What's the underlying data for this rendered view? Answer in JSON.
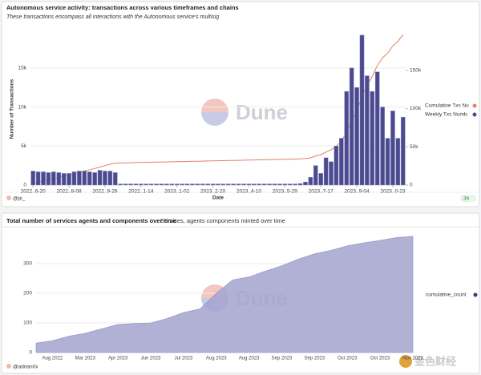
{
  "chart_data": [
    {
      "type": "bar",
      "title": "Autonomous service activity: transactions across various timeframes and chains",
      "subtitle": "These transactions encompass all interactions with the Autonomous service's multisig",
      "y_label": "Number of Transactions",
      "x_label": "Date",
      "author": "@pi_",
      "age": "3h",
      "categories": [
        "2022..6-20",
        null,
        null,
        null,
        null,
        null,
        null,
        "2022..8-08",
        null,
        null,
        null,
        null,
        null,
        null,
        "2022..9-26",
        null,
        null,
        null,
        null,
        null,
        null,
        "2022..1-14",
        null,
        null,
        null,
        null,
        null,
        null,
        "2023..1-02",
        null,
        null,
        null,
        null,
        null,
        null,
        "2023..2-20",
        null,
        null,
        null,
        null,
        null,
        null,
        "2023..4-10",
        null,
        null,
        null,
        null,
        null,
        null,
        "2023..5-29",
        null,
        null,
        null,
        null,
        null,
        null,
        "2023..7-17",
        null,
        null,
        null,
        null,
        null,
        null,
        "2023..9-04",
        null,
        null,
        null,
        null,
        null,
        null,
        "2023..0-23",
        null,
        null
      ],
      "series": [
        {
          "name": "Cumulative Txs Nu",
          "type": "line",
          "axis": "y2",
          "color": "#e2806a",
          "values": [
            1800,
            3500,
            5200,
            6800,
            8500,
            10100,
            11600,
            13100,
            14800,
            16600,
            18400,
            20100,
            21700,
            23600,
            25400,
            27200,
            28800,
            28950,
            29100,
            29250,
            29400,
            29550,
            29700,
            29850,
            30000,
            30150,
            30300,
            30450,
            30600,
            30750,
            30900,
            31050,
            31200,
            31350,
            31500,
            31650,
            31800,
            31950,
            32100,
            32250,
            32400,
            32550,
            32700,
            32850,
            33000,
            33150,
            33300,
            33450,
            33600,
            33750,
            33900,
            34050,
            34250,
            34650,
            35650,
            38150,
            39650,
            43150,
            46150,
            51150,
            57150,
            69150,
            84150,
            96650,
            115850,
            129850,
            141850,
            156350,
            166350,
            172350,
            181850,
            187850,
            196550
          ]
        },
        {
          "name": "Weekly Txs Numb.",
          "type": "bar",
          "color": "#4b4a8f",
          "values": [
            1800,
            1700,
            1700,
            1600,
            1700,
            1600,
            1500,
            1500,
            1700,
            1800,
            1800,
            1700,
            1600,
            1900,
            1800,
            1800,
            1600,
            150,
            150,
            150,
            150,
            150,
            150,
            150,
            150,
            150,
            150,
            150,
            150,
            150,
            150,
            150,
            150,
            150,
            150,
            150,
            150,
            150,
            150,
            150,
            150,
            150,
            150,
            150,
            150,
            150,
            150,
            150,
            150,
            150,
            150,
            150,
            200,
            400,
            1000,
            2500,
            1500,
            3500,
            3000,
            5000,
            6000,
            12000,
            15000,
            12500,
            19200,
            14000,
            12000,
            14500,
            10000,
            6000,
            9500,
            6000,
            8700
          ]
        }
      ],
      "ylim": [
        0,
        19600
      ],
      "yticks": [
        0,
        {
          "value": 5000,
          "label": "5k"
        },
        {
          "value": 10000,
          "label": "10k"
        },
        {
          "value": 15000,
          "label": "15k"
        }
      ],
      "y2lim": [
        0,
        200000
      ],
      "y2ticks": [
        0,
        {
          "value": 50000,
          "label": "50k"
        },
        {
          "value": 100000,
          "label": "100k"
        },
        {
          "value": 150000,
          "label": "150k"
        }
      ],
      "legend": "right"
    },
    {
      "type": "area",
      "title": "Total number of services agents and components over time",
      "subtitle": "Services, agents components minted over time",
      "author": "@adrian0x",
      "categories": [
        null,
        "Aug 2022",
        null,
        "Mar 2023",
        null,
        "Apr 2023",
        null,
        "Jun 2023",
        null,
        "Jul 2023",
        null,
        "Aug 2023",
        null,
        "Aug 2023",
        null,
        "Sep 2023",
        null,
        "Sep 2023",
        null,
        "Oct 2023",
        null,
        "Oct 2023",
        null,
        "Nov 2023"
      ],
      "series": [
        {
          "name": "cumulative_count",
          "color": "#a3a3cf",
          "values": [
            32,
            40,
            55,
            65,
            80,
            95,
            98,
            100,
            115,
            135,
            147,
            200,
            245,
            255,
            275,
            293,
            315,
            333,
            345,
            360,
            370,
            378,
            388,
            392
          ]
        }
      ],
      "ylim": [
        0,
        400
      ],
      "yticks": [
        0,
        100,
        200,
        300
      ],
      "legend": "right"
    }
  ],
  "watermark": "Dune",
  "overlay_logo": "金色财经"
}
